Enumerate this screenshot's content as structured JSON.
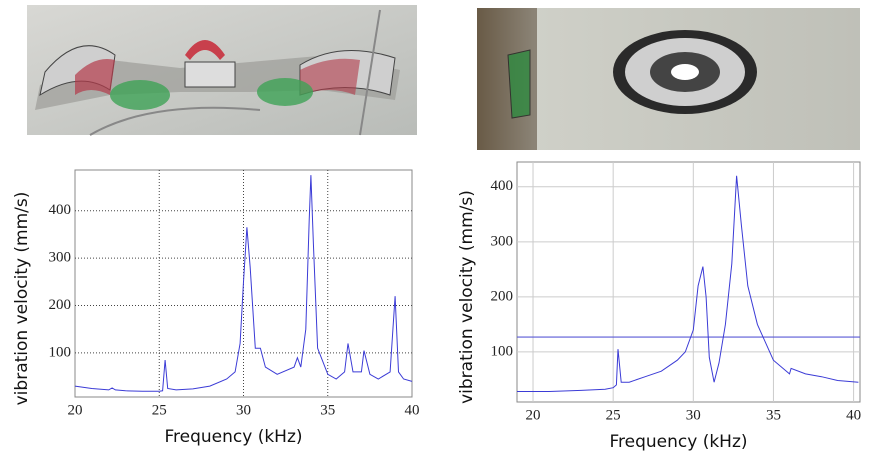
{
  "chart_data": [
    {
      "type": "line",
      "x_label": "Frequency (kHz)",
      "y_label": "vibration velocity (mm/s)",
      "xlim": [
        20,
        40
      ],
      "ylim": [
        7,
        486
      ],
      "xticks": [
        20,
        25,
        30,
        35,
        40
      ],
      "yticks": [
        100,
        200,
        300,
        400
      ],
      "grid": true,
      "series": [
        {
          "color": "#3b3bd6",
          "x": [
            20,
            21,
            22,
            22.2,
            22.4,
            23,
            24,
            25,
            25.2,
            25.35,
            25.5,
            26,
            27,
            28,
            29,
            29.5,
            29.8,
            30,
            30.2,
            30.4,
            30.7,
            31,
            31.3,
            32,
            33,
            33.2,
            33.4,
            33.7,
            33.9,
            34,
            34.15,
            34.4,
            35,
            35.5,
            36,
            36.2,
            36.5,
            37,
            37.15,
            37.5,
            38,
            38.7,
            39,
            39.2,
            39.5,
            40
          ],
          "values": [
            30,
            25,
            22,
            26,
            22,
            20,
            19,
            19,
            20,
            85,
            25,
            22,
            24,
            30,
            45,
            60,
            120,
            250,
            365,
            280,
            110,
            110,
            70,
            55,
            70,
            90,
            70,
            150,
            380,
            475,
            330,
            110,
            55,
            45,
            60,
            120,
            60,
            60,
            105,
            55,
            45,
            60,
            220,
            60,
            45,
            40
          ]
        }
      ]
    },
    {
      "type": "line",
      "x_label": "Frequency (kHz)",
      "y_label": "vibration velocity (mm/s)",
      "xlim": [
        19,
        40.4
      ],
      "ylim": [
        9,
        445
      ],
      "xticks": [
        20,
        25,
        30,
        35,
        40
      ],
      "yticks": [
        100,
        200,
        300,
        400
      ],
      "grid": true,
      "hline": 127,
      "series": [
        {
          "color": "#3b3bd6",
          "x": [
            19,
            21,
            23,
            24.5,
            25,
            25.2,
            25.3,
            25.5,
            26,
            27,
            28,
            29,
            29.5,
            30,
            30.3,
            30.6,
            30.8,
            31,
            31.3,
            31.6,
            32,
            32.4,
            32.7,
            33,
            33.4,
            34,
            35,
            36,
            36.1,
            37,
            38,
            39,
            40.3
          ],
          "values": [
            28,
            28,
            30,
            32,
            35,
            40,
            105,
            45,
            45,
            55,
            65,
            85,
            100,
            140,
            220,
            255,
            200,
            90,
            45,
            80,
            150,
            260,
            420,
            330,
            220,
            150,
            85,
            60,
            70,
            60,
            55,
            48,
            45
          ]
        }
      ]
    }
  ]
}
